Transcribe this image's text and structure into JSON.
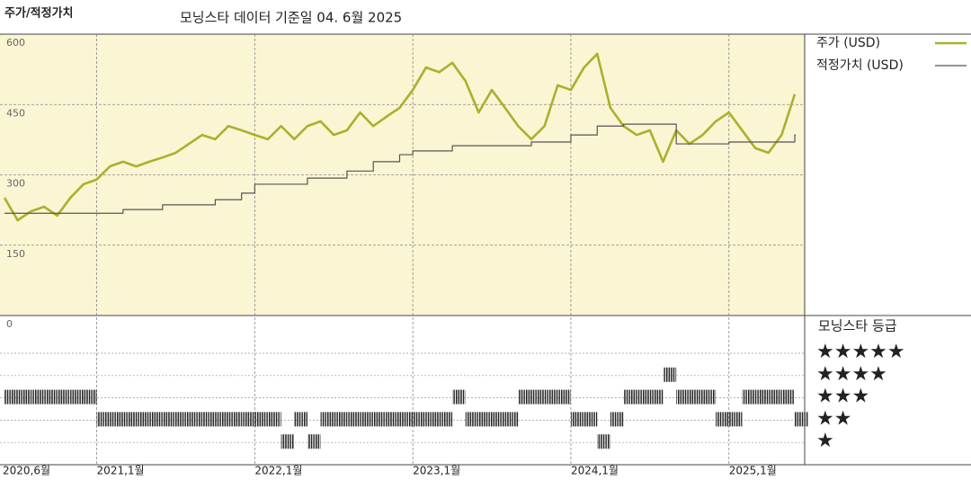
{
  "chart_data": {
    "type": "line",
    "panel_title": "주가/적정가치",
    "title": "모닝스타 데이터 기준일 04. 6월 2025",
    "x": [
      "2020-06",
      "2020-07",
      "2020-08",
      "2020-09",
      "2020-10",
      "2020-11",
      "2020-12",
      "2021-01",
      "2021-02",
      "2021-03",
      "2021-04",
      "2021-05",
      "2021-06",
      "2021-07",
      "2021-08",
      "2021-09",
      "2021-10",
      "2021-11",
      "2021-12",
      "2022-01",
      "2022-02",
      "2022-03",
      "2022-04",
      "2022-05",
      "2022-06",
      "2022-07",
      "2022-08",
      "2022-09",
      "2022-10",
      "2022-11",
      "2022-12",
      "2023-01",
      "2023-02",
      "2023-03",
      "2023-04",
      "2023-05",
      "2023-06",
      "2023-07",
      "2023-08",
      "2023-09",
      "2023-10",
      "2023-11",
      "2023-12",
      "2024-01",
      "2024-02",
      "2024-03",
      "2024-04",
      "2024-05",
      "2024-06",
      "2024-07",
      "2024-08",
      "2024-09",
      "2024-10",
      "2024-11",
      "2024-12",
      "2025-01",
      "2025-02",
      "2025-03",
      "2025-04",
      "2025-05",
      "2025-06"
    ],
    "series": [
      {
        "name": "주가 (USD)",
        "color": "#a9b12c",
        "values": [
          251,
          203,
          222,
          232,
          213,
          251,
          280,
          290,
          318,
          328,
          318,
          328,
          337,
          347,
          366,
          385,
          376,
          404,
          395,
          385,
          376,
          404,
          376,
          404,
          414,
          385,
          395,
          433,
          404,
          424,
          443,
          481,
          529,
          519,
          539,
          500,
          433,
          481,
          443,
          404,
          376,
          404,
          491,
          481,
          529,
          558,
          443,
          404,
          385,
          395,
          328,
          395,
          366,
          385,
          414,
          433,
          395,
          357,
          347,
          385,
          472
        ]
      },
      {
        "name": "적정가치 (USD)",
        "color": "#555555",
        "step": true,
        "values": [
          218,
          218,
          218,
          218,
          218,
          218,
          218,
          218,
          218,
          226,
          226,
          226,
          236,
          236,
          236,
          236,
          247,
          247,
          261,
          280,
          280,
          280,
          280,
          293,
          293,
          293,
          308,
          308,
          328,
          328,
          343,
          351,
          351,
          351,
          362,
          362,
          362,
          362,
          362,
          362,
          370,
          370,
          370,
          385,
          385,
          404,
          404,
          408,
          408,
          408,
          408,
          366,
          366,
          366,
          366,
          370,
          370,
          370,
          370,
          370,
          385
        ]
      }
    ],
    "xticks": [
      {
        "value": "2020-06",
        "label": "2020,6월"
      },
      {
        "value": "2021-01",
        "label": "2021,1월"
      },
      {
        "value": "2022-01",
        "label": "2022,1월"
      },
      {
        "value": "2023-01",
        "label": "2023,1월"
      },
      {
        "value": "2024-01",
        "label": "2024,1월"
      },
      {
        "value": "2025-01",
        "label": "2025,1월"
      }
    ],
    "ylim": [
      0,
      600
    ],
    "yticks": [
      0,
      150,
      300,
      450,
      600
    ],
    "grid": true,
    "rating_title": "모닝스타 등급",
    "rating_labels": [
      "★★★★★",
      "★★★★",
      "★★★",
      "★★",
      "★"
    ],
    "ratings": [
      3,
      3,
      3,
      3,
      3,
      3,
      3,
      2,
      2,
      2,
      2,
      2,
      2,
      2,
      2,
      2,
      2,
      2,
      2,
      2,
      2,
      1,
      2,
      1,
      2,
      2,
      2,
      2,
      2,
      2,
      2,
      2,
      2,
      2,
      3,
      2,
      2,
      2,
      2,
      3,
      3,
      3,
      3,
      2,
      2,
      1,
      2,
      3,
      3,
      3,
      4,
      3,
      3,
      3,
      2,
      2,
      3,
      3,
      3,
      3,
      2
    ]
  }
}
